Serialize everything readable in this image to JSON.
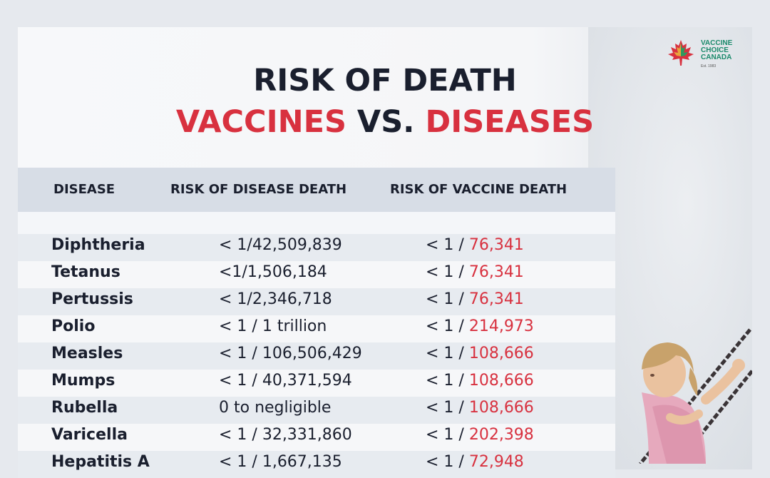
{
  "logo": {
    "line1": "VACCINE",
    "line2": "CHOICE",
    "line3": "CANADA",
    "sub": "Est. 1983"
  },
  "title": {
    "line1": "RISK OF DEATH",
    "vaccines": "VACCINES",
    "vs": "VS.",
    "diseases": "DISEASES"
  },
  "headers": {
    "disease": "DISEASE",
    "disease_death": "RISK OF DISEASE DEATH",
    "vaccine_death": "RISK OF VACCINE DEATH"
  },
  "rows": [
    {
      "name": "Diphtheria",
      "disease_risk": "< 1/42,509,839",
      "vaccine_prefix": "< 1 / ",
      "vaccine_value": "76,341"
    },
    {
      "name": "Tetanus",
      "disease_risk": "<1/1,506,184",
      "vaccine_prefix": "< 1 / ",
      "vaccine_value": "76,341"
    },
    {
      "name": "Pertussis",
      "disease_risk": "< 1/2,346,718",
      "vaccine_prefix": "< 1 / ",
      "vaccine_value": "76,341"
    },
    {
      "name": "Polio",
      "disease_risk": "< 1 / 1 trillion",
      "vaccine_prefix": "< 1 / ",
      "vaccine_value": "214,973"
    },
    {
      "name": "Measles",
      "disease_risk": "< 1 / 106,506,429",
      "vaccine_prefix": "< 1 / ",
      "vaccine_value": "108,666"
    },
    {
      "name": "Mumps",
      "disease_risk": "< 1 / 40,371,594",
      "vaccine_prefix": "< 1 / ",
      "vaccine_value": "108,666"
    },
    {
      "name": "Rubella",
      "disease_risk": "0 to negligible",
      "vaccine_prefix": "< 1 / ",
      "vaccine_value": "108,666"
    },
    {
      "name": "Varicella",
      "disease_risk": "< 1 / 32,331,860",
      "vaccine_prefix": "< 1 / ",
      "vaccine_value": "202,398"
    },
    {
      "name": "Hepatitis A",
      "disease_risk": "< 1 / 1,667,135",
      "vaccine_prefix": "< 1 / ",
      "vaccine_value": "72,948"
    }
  ],
  "colors": {
    "accent_red": "#d8313f",
    "text_dark": "#1a1f2e",
    "header_bg": "#d7dde6",
    "logo_green": "#1a8a6b"
  }
}
